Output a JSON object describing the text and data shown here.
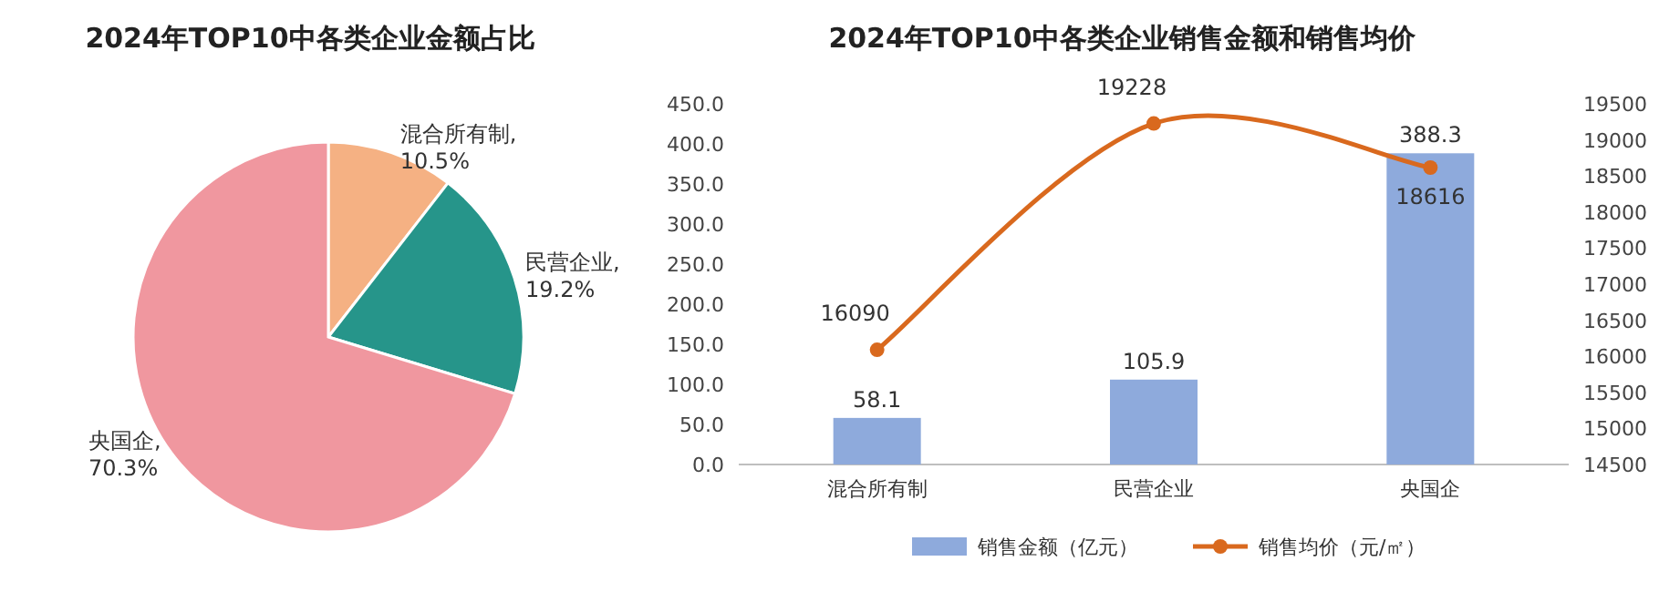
{
  "chart_data": [
    {
      "type": "pie",
      "title": "2024年TOP10中各类企业金额占比",
      "categories": [
        "混合所有制",
        "民营企业",
        "央国企"
      ],
      "values": [
        10.5,
        19.2,
        70.3
      ],
      "value_labels": [
        ", 10.5%",
        ", 19.2%",
        ", 70.3%"
      ],
      "colors": [
        "#f5b183",
        "#26958a",
        "#f0979f"
      ]
    },
    {
      "type": "bar",
      "title": "2024年TOP10中各类企业销售金额和销售均价",
      "categories": [
        "混合所有制",
        "民营企业",
        "央国企"
      ],
      "series": [
        {
          "name": "销售金额（亿元）",
          "color": "#8eaadc",
          "values": [
            58.1,
            105.9,
            388.3
          ]
        },
        {
          "name": "销售均价（元/㎡）",
          "type": "line",
          "axis": "y2",
          "color": "#d9691e",
          "values": [
            16090,
            19228,
            18616
          ]
        }
      ],
      "ylim": [
        0,
        450
      ],
      "yticks": [
        {
          "value": 0,
          "label": "0.0"
        },
        {
          "value": 50,
          "label": "50.0"
        },
        {
          "value": 100,
          "label": "100.0"
        },
        {
          "value": 150,
          "label": "150.0"
        },
        {
          "value": 200,
          "label": "200.0"
        },
        {
          "value": 250,
          "label": "250.0"
        },
        {
          "value": 300,
          "label": "300.0"
        },
        {
          "value": 350,
          "label": "350.0"
        },
        {
          "value": 400,
          "label": "400.0"
        },
        {
          "value": 450,
          "label": "450.0"
        }
      ],
      "y2lim": [
        14500,
        19500
      ],
      "y2ticks": [
        14500,
        15000,
        15500,
        16000,
        16500,
        17000,
        17500,
        18000,
        18500,
        19000,
        19500
      ],
      "marker": "circle",
      "legend": "bottom",
      "data_labels": true
    }
  ]
}
